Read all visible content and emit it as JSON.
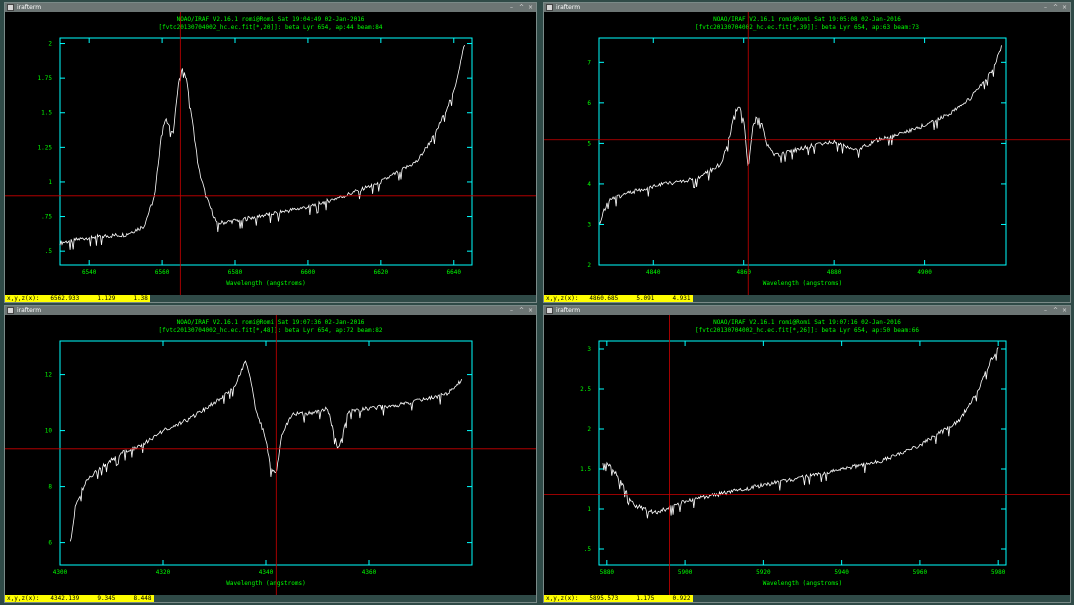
{
  "colors": {
    "bg": "#2f4a47",
    "plot_bg": "#000000",
    "axis": "#00ffff",
    "text": "#00ff00",
    "spectrum": "#ffffff",
    "cursor": "#cc0000",
    "status_bg": "#ffff00"
  },
  "windows": [
    {
      "title": "irafterm",
      "header1": "NOAO/IRAF V2.16.1 romi@Romi Sat 19:04:49 02-Jan-2016",
      "header2": "[fvtc20130704002_hc.ec.fit[*,20]]: beta Lyr 654, ap:44 beam:84",
      "xlabel": "Wavelength (angstroms)",
      "status": {
        "label": "x,y,z(x):",
        "x": "6562.933",
        "y": "1.129",
        "z": "1.38"
      },
      "chart_data": {
        "type": "line",
        "xlabel": "Wavelength (angstroms)",
        "xlim": [
          6532,
          6645
        ],
        "ylim": [
          0.4,
          2.04
        ],
        "xticks": [
          6540,
          6560,
          6580,
          6600,
          6620,
          6640
        ],
        "yticks": [
          0.5,
          0.75,
          1,
          1.25,
          1.5,
          1.75,
          2
        ],
        "ytick_labels": [
          ".5",
          ".75",
          "1",
          "1.25",
          "1.5",
          "1.75",
          "2"
        ],
        "cursor": {
          "x": 6565,
          "y": 0.9
        },
        "series": [
          {
            "x": [
              6532,
              6540,
              6550,
              6555,
              6558,
              6560,
              6561,
              6563,
              6564,
              6565,
              6566,
              6567,
              6568,
              6570,
              6572,
              6575,
              6580,
              6590,
              6600,
              6610,
              6620,
              6630,
              6635,
              6640,
              6643
            ],
            "y": [
              0.56,
              0.6,
              0.62,
              0.68,
              0.9,
              1.4,
              1.45,
              1.35,
              1.6,
              1.8,
              1.82,
              1.7,
              1.5,
              1.1,
              0.9,
              0.7,
              0.72,
              0.77,
              0.82,
              0.9,
              1.0,
              1.15,
              1.35,
              1.65,
              2.0
            ]
          }
        ]
      }
    },
    {
      "title": "irafterm",
      "header1": "NOAO/IRAF V2.16.1 romi@Romi Sat 19:05:08 02-Jan-2016",
      "header2": "[fvtc20130704002_hc.ec.fit[*,39]]: beta Lyr 654, ap:63 beam:73",
      "xlabel": "Wavelength (angstroms)",
      "status": {
        "label": "x,y,z(x):",
        "x": "4860.685",
        "y": "5.091",
        "z": "4.931"
      },
      "chart_data": {
        "type": "line",
        "xlabel": "Wavelength (angstroms)",
        "xlim": [
          4828,
          4918
        ],
        "ylim": [
          2,
          7.6
        ],
        "xticks": [
          4840,
          4860,
          4880,
          4900
        ],
        "yticks": [
          2,
          3,
          4,
          5,
          6,
          7
        ],
        "ytick_labels": [
          "2",
          "3",
          "4",
          "5",
          "6",
          "7"
        ],
        "cursor": {
          "x": 4861,
          "y": 5.09
        },
        "series": [
          {
            "x": [
              4828,
              4830,
              4835,
              4840,
              4845,
              4850,
              4855,
              4857,
              4858,
              4859,
              4860,
              4861,
              4862,
              4863,
              4864,
              4865,
              4867,
              4870,
              4875,
              4880,
              4885,
              4890,
              4895,
              4900,
              4905,
              4910,
              4915,
              4917
            ],
            "y": [
              3.0,
              3.6,
              3.8,
              3.95,
              4.05,
              4.15,
              4.5,
              5.2,
              5.8,
              5.9,
              5.6,
              4.4,
              5.4,
              5.7,
              5.5,
              5.0,
              4.7,
              4.8,
              4.95,
              5.05,
              4.85,
              5.1,
              5.25,
              5.45,
              5.7,
              6.1,
              6.8,
              7.4
            ]
          }
        ]
      }
    },
    {
      "title": "irafterm",
      "header1": "NOAO/IRAF V2.16.1 romi@Romi Sat 19:07:36 02-Jan-2016",
      "header2": "[fvtc20130704002_hc.ec.fit[*,48]]: beta Lyr 654, ap:72 beam:82",
      "xlabel": "Wavelength (angstroms)",
      "status": {
        "label": "x,y,z(x):",
        "x": "4342.139",
        "y": "9.345",
        "z": "8.448"
      },
      "chart_data": {
        "type": "line",
        "xlabel": "Wavelength (angstroms)",
        "xlim": [
          4300,
          4380
        ],
        "ylim": [
          5.2,
          13.2
        ],
        "xticks": [
          4300,
          4320,
          4340,
          4360
        ],
        "yticks": [
          6,
          8,
          10,
          12
        ],
        "ytick_labels": [
          "6",
          "8",
          "10",
          "12"
        ],
        "cursor": {
          "x": 4342,
          "y": 9.35
        },
        "series": [
          {
            "x": [
              4302,
              4303,
              4305,
              4308,
              4312,
              4316,
              4320,
              4325,
              4330,
              4334,
              4336,
              4337,
              4338,
              4340,
              4341,
              4342,
              4343,
              4345,
              4348,
              4352,
              4354,
              4356,
              4360,
              4365,
              4370,
              4375,
              4378
            ],
            "y": [
              6.0,
              7.3,
              8.2,
              8.7,
              9.2,
              9.5,
              10.0,
              10.4,
              11.0,
              11.6,
              12.5,
              11.8,
              10.8,
              9.7,
              8.6,
              8.5,
              9.8,
              10.6,
              10.6,
              10.8,
              9.3,
              10.7,
              10.8,
              10.9,
              11.1,
              11.3,
              11.8
            ]
          }
        ]
      }
    },
    {
      "title": "irafterm",
      "header1": "NOAO/IRAF V2.16.1 romi@Romi Sat 19:07:16 02-Jan-2016",
      "header2": "[fvtc20130704002_hc.ec.fit[*,26]]: beta Lyr 654, ap:50 beam:66",
      "xlabel": "Wavelength (angstroms)",
      "status": {
        "label": "x,y,z(x):",
        "x": "5895.573",
        "y": "1.175",
        "z": "0.922"
      },
      "chart_data": {
        "type": "line",
        "xlabel": "Wavelength (angstroms)",
        "xlim": [
          5878,
          5982
        ],
        "ylim": [
          0.3,
          3.1
        ],
        "xticks": [
          5880,
          5900,
          5920,
          5940,
          5960,
          5980
        ],
        "yticks": [
          0.5,
          1,
          1.5,
          2,
          2.5,
          3
        ],
        "ytick_labels": [
          ".5",
          "1",
          "1.5",
          "2",
          "2.5",
          "3"
        ],
        "cursor": {
          "x": 5896,
          "y": 1.18
        },
        "series": [
          {
            "x": [
              5879,
              5881,
              5884,
              5887,
              5890,
              5892,
              5895,
              5900,
              5905,
              5910,
              5920,
              5930,
              5940,
              5950,
              5955,
              5960,
              5965,
              5970,
              5975,
              5978,
              5980
            ],
            "y": [
              1.6,
              1.55,
              1.3,
              1.05,
              1.0,
              0.95,
              1.0,
              1.1,
              1.15,
              1.2,
              1.3,
              1.4,
              1.5,
              1.6,
              1.7,
              1.8,
              1.95,
              2.1,
              2.5,
              2.85,
              3.0
            ]
          }
        ]
      }
    }
  ]
}
